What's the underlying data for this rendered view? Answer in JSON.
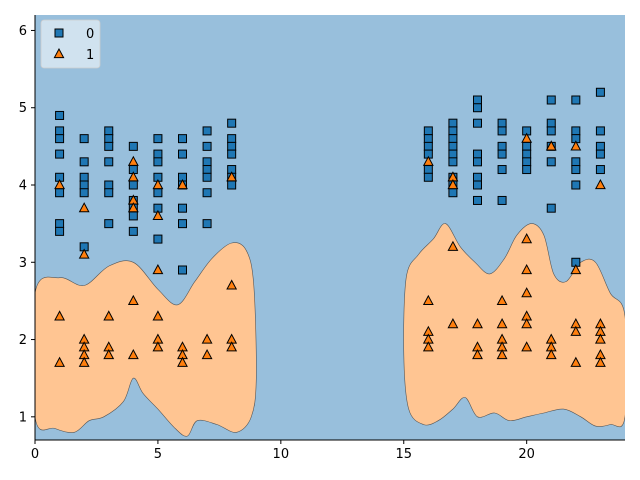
{
  "chart_data": {
    "type": "scatter",
    "title": "",
    "xlabel": "",
    "ylabel": "",
    "xlim": [
      0,
      24
    ],
    "ylim": [
      0.7,
      6.2
    ],
    "x_ticks": [
      "0",
      "5",
      "10",
      "15",
      "20"
    ],
    "y_ticks": [
      "1",
      "2",
      "3",
      "4",
      "5",
      "6"
    ],
    "grid": false,
    "legend_placement": "top-left",
    "background_region_color": "#98bfdc",
    "class1_region_color": "#ffc592",
    "series": [
      {
        "name": "0",
        "marker": "square",
        "color": "#1f77b4",
        "points": [
          [
            1,
            4.9
          ],
          [
            1,
            4.7
          ],
          [
            1,
            4.6
          ],
          [
            1,
            4.4
          ],
          [
            1,
            4.1
          ],
          [
            1,
            3.9
          ],
          [
            1,
            3.5
          ],
          [
            1,
            3.4
          ],
          [
            2,
            4.6
          ],
          [
            2,
            4.3
          ],
          [
            2,
            4.1
          ],
          [
            2,
            4.0
          ],
          [
            2,
            3.9
          ],
          [
            2,
            3.2
          ],
          [
            3,
            4.7
          ],
          [
            3,
            4.6
          ],
          [
            3,
            4.5
          ],
          [
            3,
            4.3
          ],
          [
            3,
            4.0
          ],
          [
            3,
            3.9
          ],
          [
            3,
            3.5
          ],
          [
            4,
            4.5
          ],
          [
            4,
            4.2
          ],
          [
            4,
            4.0
          ],
          [
            4,
            3.8
          ],
          [
            4,
            3.7
          ],
          [
            4,
            3.6
          ],
          [
            4,
            3.4
          ],
          [
            5,
            4.6
          ],
          [
            5,
            4.4
          ],
          [
            5,
            4.3
          ],
          [
            5,
            4.1
          ],
          [
            5,
            3.9
          ],
          [
            5,
            3.7
          ],
          [
            5,
            3.3
          ],
          [
            6,
            4.6
          ],
          [
            6,
            4.4
          ],
          [
            6,
            4.1
          ],
          [
            6,
            4.0
          ],
          [
            6,
            3.7
          ],
          [
            6,
            3.5
          ],
          [
            6,
            2.9
          ],
          [
            7,
            4.7
          ],
          [
            7,
            4.5
          ],
          [
            7,
            4.3
          ],
          [
            7,
            4.2
          ],
          [
            7,
            4.1
          ],
          [
            7,
            3.9
          ],
          [
            7,
            3.5
          ],
          [
            8,
            4.8
          ],
          [
            8,
            4.6
          ],
          [
            8,
            4.5
          ],
          [
            8,
            4.4
          ],
          [
            8,
            4.2
          ],
          [
            8,
            4.1
          ],
          [
            8,
            4.0
          ],
          [
            16,
            4.7
          ],
          [
            16,
            4.6
          ],
          [
            16,
            4.5
          ],
          [
            16,
            4.4
          ],
          [
            16,
            4.2
          ],
          [
            16,
            4.1
          ],
          [
            17,
            4.8
          ],
          [
            17,
            4.7
          ],
          [
            17,
            4.6
          ],
          [
            17,
            4.5
          ],
          [
            17,
            4.4
          ],
          [
            17,
            4.3
          ],
          [
            17,
            4.1
          ],
          [
            17,
            4.0
          ],
          [
            17,
            3.9
          ],
          [
            18,
            5.1
          ],
          [
            18,
            5.0
          ],
          [
            18,
            4.8
          ],
          [
            18,
            4.4
          ],
          [
            18,
            4.3
          ],
          [
            18,
            4.1
          ],
          [
            18,
            4.0
          ],
          [
            18,
            3.8
          ],
          [
            19,
            4.8
          ],
          [
            19,
            4.7
          ],
          [
            19,
            4.5
          ],
          [
            19,
            4.4
          ],
          [
            19,
            4.2
          ],
          [
            19,
            3.8
          ],
          [
            20,
            4.7
          ],
          [
            20,
            4.5
          ],
          [
            20,
            4.4
          ],
          [
            20,
            4.3
          ],
          [
            20,
            4.2
          ],
          [
            21,
            5.1
          ],
          [
            21,
            4.8
          ],
          [
            21,
            4.7
          ],
          [
            21,
            4.5
          ],
          [
            21,
            4.3
          ],
          [
            21,
            3.7
          ],
          [
            22,
            5.1
          ],
          [
            22,
            4.7
          ],
          [
            22,
            4.6
          ],
          [
            22,
            4.3
          ],
          [
            22,
            4.2
          ],
          [
            22,
            4.0
          ],
          [
            22,
            3.0
          ],
          [
            23,
            5.2
          ],
          [
            23,
            4.7
          ],
          [
            23,
            4.5
          ],
          [
            23,
            4.4
          ],
          [
            23,
            4.2
          ]
        ]
      },
      {
        "name": "1",
        "marker": "triangle",
        "color": "#ff7f0e",
        "points": [
          [
            1,
            4.0
          ],
          [
            1,
            2.3
          ],
          [
            1,
            1.7
          ],
          [
            2,
            3.7
          ],
          [
            2,
            3.1
          ],
          [
            2,
            2.0
          ],
          [
            2,
            1.9
          ],
          [
            2,
            1.8
          ],
          [
            2,
            1.7
          ],
          [
            3,
            2.3
          ],
          [
            3,
            1.9
          ],
          [
            3,
            1.8
          ],
          [
            4,
            4.3
          ],
          [
            4,
            4.1
          ],
          [
            4,
            3.8
          ],
          [
            4,
            3.7
          ],
          [
            4,
            2.5
          ],
          [
            4,
            1.8
          ],
          [
            5,
            4.0
          ],
          [
            5,
            3.6
          ],
          [
            5,
            2.9
          ],
          [
            5,
            2.3
          ],
          [
            5,
            2.0
          ],
          [
            5,
            1.9
          ],
          [
            6,
            4.0
          ],
          [
            6,
            1.9
          ],
          [
            6,
            1.8
          ],
          [
            6,
            1.7
          ],
          [
            7,
            2.0
          ],
          [
            7,
            1.8
          ],
          [
            8,
            4.1
          ],
          [
            8,
            2.7
          ],
          [
            8,
            2.0
          ],
          [
            8,
            1.9
          ],
          [
            16,
            4.3
          ],
          [
            16,
            2.5
          ],
          [
            16,
            2.1
          ],
          [
            16,
            2.0
          ],
          [
            16,
            1.9
          ],
          [
            17,
            4.1
          ],
          [
            17,
            4.0
          ],
          [
            17,
            3.2
          ],
          [
            17,
            2.2
          ],
          [
            18,
            2.2
          ],
          [
            18,
            1.9
          ],
          [
            18,
            1.8
          ],
          [
            19,
            2.5
          ],
          [
            19,
            2.2
          ],
          [
            19,
            2.0
          ],
          [
            19,
            1.9
          ],
          [
            19,
            1.8
          ],
          [
            20,
            4.6
          ],
          [
            20,
            3.3
          ],
          [
            20,
            2.9
          ],
          [
            20,
            2.6
          ],
          [
            20,
            2.3
          ],
          [
            20,
            2.2
          ],
          [
            20,
            1.9
          ],
          [
            21,
            4.5
          ],
          [
            21,
            2.0
          ],
          [
            21,
            1.9
          ],
          [
            21,
            1.8
          ],
          [
            22,
            4.5
          ],
          [
            22,
            2.9
          ],
          [
            22,
            2.2
          ],
          [
            22,
            2.1
          ],
          [
            22,
            1.7
          ],
          [
            23,
            4.0
          ],
          [
            23,
            2.2
          ],
          [
            23,
            2.1
          ],
          [
            23,
            2.0
          ],
          [
            23,
            1.8
          ],
          [
            23,
            1.7
          ]
        ]
      }
    ],
    "class1_regions": [
      [
        [
          0.0,
          2.6
        ],
        [
          1.0,
          2.8
        ],
        [
          2.0,
          2.7
        ],
        [
          3.0,
          2.95
        ],
        [
          4.0,
          3.0
        ],
        [
          5.0,
          2.65
        ],
        [
          5.8,
          2.45
        ],
        [
          6.5,
          2.75
        ],
        [
          7.2,
          3.05
        ],
        [
          8.0,
          3.25
        ],
        [
          8.6,
          3.15
        ],
        [
          8.9,
          2.7
        ],
        [
          9.0,
          1.5
        ],
        [
          8.8,
          1.0
        ],
        [
          8.2,
          0.8
        ],
        [
          7.4,
          0.9
        ],
        [
          6.6,
          0.95
        ],
        [
          6.2,
          0.75
        ],
        [
          5.7,
          0.85
        ],
        [
          5.0,
          1.1
        ],
        [
          4.4,
          1.3
        ],
        [
          4.0,
          1.5
        ],
        [
          3.6,
          1.2
        ],
        [
          2.8,
          1.0
        ],
        [
          2.2,
          0.95
        ],
        [
          1.6,
          0.8
        ],
        [
          0.8,
          0.85
        ],
        [
          0.0,
          1.0
        ]
      ],
      [
        [
          15.1,
          2.8
        ],
        [
          15.6,
          3.1
        ],
        [
          16.2,
          3.3
        ],
        [
          16.7,
          3.5
        ],
        [
          17.3,
          3.2
        ],
        [
          17.9,
          3.0
        ],
        [
          18.5,
          2.85
        ],
        [
          19.1,
          3.05
        ],
        [
          19.6,
          3.35
        ],
        [
          20.2,
          3.5
        ],
        [
          20.7,
          3.35
        ],
        [
          21.1,
          2.85
        ],
        [
          21.6,
          2.75
        ],
        [
          22.2,
          3.0
        ],
        [
          22.8,
          3.0
        ],
        [
          23.4,
          2.6
        ],
        [
          24.0,
          2.3
        ],
        [
          24.0,
          1.0
        ],
        [
          23.4,
          0.9
        ],
        [
          22.8,
          0.88
        ],
        [
          22.2,
          1.0
        ],
        [
          21.5,
          1.1
        ],
        [
          20.7,
          1.05
        ],
        [
          20.0,
          1.0
        ],
        [
          19.3,
          0.95
        ],
        [
          18.7,
          1.05
        ],
        [
          18.0,
          1.0
        ],
        [
          17.5,
          1.25
        ],
        [
          17.0,
          1.1
        ],
        [
          16.4,
          0.95
        ],
        [
          15.8,
          0.9
        ],
        [
          15.2,
          1.1
        ],
        [
          15.0,
          1.8
        ]
      ]
    ]
  }
}
